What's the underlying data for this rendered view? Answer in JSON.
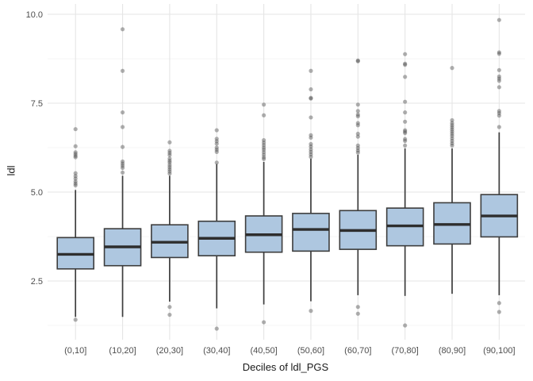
{
  "figure": {
    "background": "#ffffff",
    "panel_background": "#ffffff"
  },
  "chart_data": {
    "type": "boxplot",
    "title": "",
    "xlabel": "Deciles of ldl_PGS",
    "ylabel": "ldl",
    "legend": "none",
    "grid": "major and minor horizontal + major vertical, light gray on white",
    "ylim": [
      0.8,
      10.3
    ],
    "y_ticks": [
      {
        "value": 2.5,
        "label": "2.5"
      },
      {
        "value": 5.0,
        "label": "5.0"
      },
      {
        "value": 7.5,
        "label": "7.5"
      },
      {
        "value": 10.0,
        "label": "10.0"
      }
    ],
    "y_minor_ticks": [
      1.25,
      3.75,
      6.25,
      8.75
    ],
    "categories": [
      "(0,10]",
      "(10,20]",
      "(20,30]",
      "(30,40]",
      "(40,50]",
      "(50,60]",
      "(60,70]",
      "(70,80]",
      "(80,90]",
      "(90,100]"
    ],
    "boxes": [
      {
        "category": "(0,10]",
        "whisker_low": 1.49,
        "q1": 2.84,
        "median": 3.25,
        "q3": 3.72,
        "whisker_high": 5.06,
        "outliers_high": [
          6.77,
          6.29,
          6.12,
          6.07,
          6.02,
          5.98,
          5.53,
          5.45,
          5.38,
          5.3,
          5.24,
          5.19
        ],
        "outliers_low": [
          1.41
        ]
      },
      {
        "category": "(10,20]",
        "whisker_low": 1.49,
        "q1": 2.93,
        "median": 3.46,
        "q3": 3.97,
        "whisker_high": 5.46,
        "outliers_high": [
          9.58,
          8.41,
          7.24,
          6.83,
          6.27,
          5.86,
          5.8,
          5.74,
          5.68,
          5.55
        ],
        "outliers_low": []
      },
      {
        "category": "(20,30]",
        "whisker_low": 1.92,
        "q1": 3.16,
        "median": 3.59,
        "q3": 4.08,
        "whisker_high": 5.46,
        "outliers_high": [
          6.4,
          6.16,
          6.1,
          6.04,
          5.94,
          5.88,
          5.83,
          5.76,
          5.7,
          5.64,
          5.58,
          5.52
        ],
        "outliers_low": [
          1.77,
          1.55
        ]
      },
      {
        "category": "(30,40]",
        "whisker_low": 1.73,
        "q1": 3.21,
        "median": 3.7,
        "q3": 4.18,
        "whisker_high": 5.79,
        "outliers_high": [
          6.74,
          6.5,
          6.43,
          6.36,
          6.25,
          6.19,
          6.13,
          5.83
        ],
        "outliers_low": [
          1.16
        ]
      },
      {
        "category": "(40,50]",
        "whisker_low": 1.84,
        "q1": 3.31,
        "median": 3.8,
        "q3": 4.33,
        "whisker_high": 5.85,
        "outliers_high": [
          7.46,
          7.16,
          6.46,
          6.39,
          6.32,
          6.25,
          6.19,
          6.12,
          6.05,
          5.98,
          5.93
        ],
        "outliers_low": [
          1.34
        ]
      },
      {
        "category": "(50,60]",
        "whisker_low": 1.93,
        "q1": 3.34,
        "median": 3.95,
        "q3": 4.4,
        "whisker_high": 5.94,
        "outliers_high": [
          8.41,
          7.89,
          7.65,
          7.63,
          7.1,
          6.6,
          6.53,
          6.35,
          6.28,
          6.2,
          6.13,
          6.06,
          5.99
        ],
        "outliers_low": [
          1.66
        ]
      },
      {
        "category": "(60,70]",
        "whisker_low": 2.1,
        "q1": 3.39,
        "median": 3.92,
        "q3": 4.48,
        "whisker_high": 6.05,
        "outliers_high": [
          8.7,
          8.68,
          7.46,
          7.28,
          7.18,
          7.13,
          6.94,
          6.88,
          6.64,
          6.56,
          6.31,
          6.24,
          6.17,
          6.11
        ],
        "outliers_low": [
          1.77,
          1.58
        ]
      },
      {
        "category": "(70,80]",
        "whisker_low": 2.08,
        "q1": 3.49,
        "median": 4.05,
        "q3": 4.55,
        "whisker_high": 6.23,
        "outliers_high": [
          8.88,
          8.61,
          8.58,
          8.24,
          7.54,
          7.24,
          6.98,
          6.74,
          6.7,
          6.66,
          6.49,
          6.44,
          6.31
        ],
        "outliers_low": [
          1.25
        ]
      },
      {
        "category": "(80,90]",
        "whisker_low": 2.14,
        "q1": 3.54,
        "median": 4.09,
        "q3": 4.7,
        "whisker_high": 6.23,
        "outliers_high": [
          8.49,
          7.02,
          6.94,
          6.88,
          6.82,
          6.76,
          6.7,
          6.64,
          6.58,
          6.51,
          6.44,
          6.37,
          6.31
        ],
        "outliers_low": []
      },
      {
        "category": "(90,100]",
        "whisker_low": 2.1,
        "q1": 3.74,
        "median": 4.33,
        "q3": 4.93,
        "whisker_high": 6.68,
        "outliers_high": [
          9.84,
          8.93,
          8.89,
          8.43,
          8.25,
          8.19,
          8.13,
          7.95,
          7.28,
          7.22,
          7.15,
          6.83
        ],
        "outliers_low": [
          1.88,
          1.63
        ]
      }
    ],
    "style": {
      "box_fill": "#aec7e0",
      "box_stroke": "#3d3d3d",
      "median_stroke": "#2e2e2e",
      "outlier_color": "#4f4f4f",
      "outlier_opacity": 0.45,
      "grid_major": "#e5e5e5",
      "grid_minor": "#f2f2f2",
      "tick_label_color": "#4d4d4d",
      "axis_title_color": "#1a1a1a"
    }
  }
}
